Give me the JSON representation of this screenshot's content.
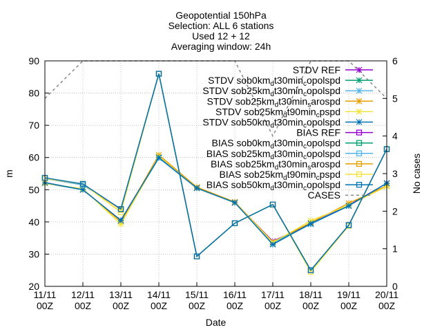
{
  "chart_data": {
    "type": "line",
    "title_lines": [
      "Geopotential 150hPa",
      "Selection: ALL      6 stations",
      "Used 12 + 12",
      "Averaging window: 24h"
    ],
    "xlabel": "Date",
    "ylabel": "m",
    "y2label": "No cases",
    "categories": [
      [
        "11/11",
        "00Z"
      ],
      [
        "12/11",
        "00Z"
      ],
      [
        "13/11",
        "00Z"
      ],
      [
        "14/11",
        "00Z"
      ],
      [
        "15/11",
        "00Z"
      ],
      [
        "16/11",
        "00Z"
      ],
      [
        "17/11",
        "00Z"
      ],
      [
        "18/11",
        "00Z"
      ],
      [
        "19/11",
        "00Z"
      ],
      [
        "20/11",
        "00Z"
      ]
    ],
    "ylim": [
      20,
      90
    ],
    "yticks": [
      20,
      30,
      40,
      50,
      60,
      70,
      80,
      90
    ],
    "y2lim": [
      0,
      6
    ],
    "y2ticks": [
      0,
      1,
      2,
      3,
      4,
      5,
      6
    ],
    "grid": true,
    "legend_position": "top-right",
    "series": [
      {
        "name": "STDV REF",
        "sub": [],
        "axis": "y",
        "color": "#9400d3",
        "marker": "cross",
        "dash": "",
        "values": [
          52.2,
          50.0,
          40.5,
          60.2,
          50.5,
          46.0,
          34.0,
          39.5,
          45.2,
          52.0
        ]
      },
      {
        "name": "STDV sob0km[d]t30min[c]opolspd",
        "sub": [],
        "axis": "y",
        "color": "#009e73",
        "marker": "cross",
        "dash": "",
        "values": [
          52.0,
          50.0,
          40.3,
          60.0,
          50.5,
          46.0,
          33.5,
          39.3,
          45.0,
          52.0
        ]
      },
      {
        "name": "STDV sob25km[d]t30min[c]opolspd",
        "sub": [],
        "axis": "y",
        "color": "#56b4e9",
        "marker": "cross",
        "dash": "",
        "values": [
          52.0,
          50.0,
          40.2,
          59.8,
          50.5,
          46.0,
          33.3,
          39.3,
          45.0,
          52.0
        ]
      },
      {
        "name": "STDV sob25km[d]t30min[s]arospd",
        "sub": [],
        "axis": "y",
        "color": "#e69f00",
        "marker": "cross",
        "dash": "",
        "values": [
          52.0,
          50.2,
          40.0,
          60.8,
          50.8,
          46.2,
          33.8,
          39.8,
          45.8,
          51.2
        ]
      },
      {
        "name": "STDV sob25km[d]t90min[c]pspd",
        "sub": [],
        "axis": "y",
        "color": "#f0e442",
        "marker": "cross",
        "dash": "",
        "values": [
          52.0,
          50.3,
          39.3,
          60.3,
          50.5,
          46.0,
          33.6,
          40.4,
          45.2,
          51.0
        ]
      },
      {
        "name": "STDV sob50km[d]t30min[c]opolspd",
        "sub": [],
        "axis": "y",
        "color": "#0072b2",
        "marker": "cross",
        "dash": "",
        "values": [
          52.2,
          50.0,
          40.5,
          60.0,
          50.5,
          46.0,
          33.0,
          39.5,
          45.0,
          52.0
        ]
      },
      {
        "name": "BIAS REF",
        "sub": [],
        "axis": "y",
        "color": "#9400d3",
        "marker": "square",
        "dash": "",
        "values": [
          53.5,
          51.5,
          44.0,
          86.0,
          29.3,
          39.6,
          45.4,
          25.0,
          39.0,
          62.6
        ]
      },
      {
        "name": "BIAS sob0km[d]t30min[c]opolspd",
        "sub": [],
        "axis": "y",
        "color": "#009e73",
        "marker": "square",
        "dash": "",
        "values": [
          53.5,
          51.5,
          44.0,
          86.0,
          29.3,
          39.6,
          45.4,
          25.0,
          39.0,
          62.6
        ]
      },
      {
        "name": "BIAS sob25km[d]t30min[c]opolspd",
        "sub": [],
        "axis": "y",
        "color": "#56b4e9",
        "marker": "square",
        "dash": "",
        "values": [
          53.5,
          51.5,
          44.0,
          86.0,
          29.3,
          39.6,
          45.4,
          25.0,
          39.0,
          62.6
        ]
      },
      {
        "name": "BIAS sob25km[d]t30min[s]arospd",
        "sub": [],
        "axis": "y",
        "color": "#e69f00",
        "marker": "square",
        "dash": "",
        "values": [
          53.5,
          51.8,
          43.8,
          86.0,
          29.3,
          39.6,
          45.4,
          25.0,
          39.0,
          62.6
        ]
      },
      {
        "name": "BIAS sob25km[d]t90min[c]pspd",
        "sub": [],
        "axis": "y",
        "color": "#f0e442",
        "marker": "square",
        "dash": "",
        "values": [
          53.5,
          51.8,
          43.0,
          86.0,
          29.3,
          39.6,
          45.4,
          24.5,
          38.8,
          62.6
        ]
      },
      {
        "name": "BIAS sob50km[d]t30min[c]opolspd",
        "sub": [],
        "axis": "y",
        "color": "#0072b2",
        "marker": "square",
        "dash": "",
        "values": [
          53.7,
          51.8,
          44.0,
          86.0,
          29.3,
          39.6,
          45.4,
          25.0,
          39.0,
          62.6
        ]
      },
      {
        "name": "CASES",
        "sub": [],
        "axis": "y2",
        "color": "#888888",
        "marker": "none",
        "dash": "4,4",
        "values": [
          5,
          6,
          6,
          6,
          6,
          6,
          4,
          6,
          6,
          5
        ]
      }
    ]
  }
}
